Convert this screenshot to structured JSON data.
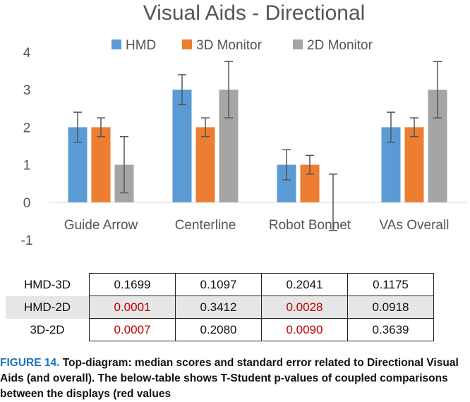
{
  "chart_data": {
    "type": "bar",
    "title": "Visual Aids - Directional",
    "categories": [
      "Guide Arrow",
      "Centerline",
      "Robot Bonnet",
      "VAs Overall"
    ],
    "series": [
      {
        "name": "HMD",
        "color": "#5b9bd5",
        "values": [
          2,
          3,
          1,
          2
        ],
        "error": [
          0.4,
          0.4,
          0.4,
          0.4
        ]
      },
      {
        "name": "3D Monitor",
        "color": "#ed7d31",
        "values": [
          2,
          2,
          1,
          2
        ],
        "error": [
          0.25,
          0.25,
          0.25,
          0.25
        ]
      },
      {
        "name": "2D Monitor",
        "color": "#a5a5a5",
        "values": [
          1,
          3,
          0,
          3
        ],
        "error": [
          0.75,
          0.75,
          0.75,
          0.75
        ]
      }
    ],
    "ylim": [
      -1,
      4
    ],
    "yticks": [
      "4",
      "3",
      "2",
      "1",
      "0",
      "-1"
    ],
    "grid": false,
    "legend": "top"
  },
  "table": {
    "rows": [
      {
        "label": "HMD-3D",
        "cells": [
          {
            "value": "0.1699",
            "significant": false
          },
          {
            "value": "0.1097",
            "significant": false
          },
          {
            "value": "0.2041",
            "significant": false
          },
          {
            "value": "0.1175",
            "significant": false
          }
        ]
      },
      {
        "label": "HMD-2D",
        "cells": [
          {
            "value": "0.0001",
            "significant": true
          },
          {
            "value": "0.3412",
            "significant": false
          },
          {
            "value": "0.0028",
            "significant": true
          },
          {
            "value": "0.0918",
            "significant": false
          }
        ]
      },
      {
        "label": "3D-2D",
        "cells": [
          {
            "value": "0.0007",
            "significant": true
          },
          {
            "value": "0.2080",
            "significant": false
          },
          {
            "value": "0.0090",
            "significant": true
          },
          {
            "value": "0.3639",
            "significant": false
          }
        ]
      }
    ]
  },
  "caption": {
    "figure_label": "FIGURE 14.",
    "text": "Top-diagram: median scores and standard error related to Directional Visual Aids (and overall). The below-table shows T-Student p-values of coupled comparisons between the displays (red values"
  }
}
